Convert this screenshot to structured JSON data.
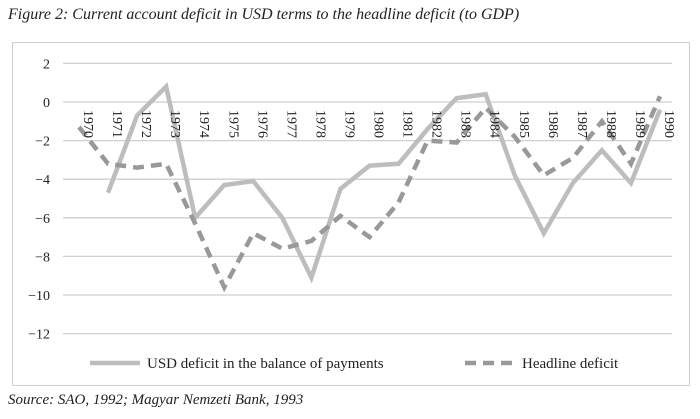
{
  "title": "Figure 2: Current account deficit in USD terms to the headline deficit (to GDP)",
  "source": "Source: SAO, 1992; Magyar Nemzeti Bank, 1993",
  "chart_data": {
    "type": "line",
    "categories": [
      "1970",
      "1971",
      "1972",
      "1973",
      "1974",
      "1975",
      "1976",
      "1977",
      "1978",
      "1979",
      "1980",
      "1981",
      "1982",
      "1983",
      "1984",
      "1985",
      "1986",
      "1987",
      "1988",
      "1989",
      "1990"
    ],
    "ylim": [
      -12,
      2
    ],
    "yticks": [
      2,
      0,
      -2,
      -4,
      -6,
      -8,
      -10,
      -12
    ],
    "ytick_labels": [
      "2",
      "0",
      "−2",
      "−4",
      "−6",
      "−8",
      "−10",
      "−12"
    ],
    "grid": true,
    "legend_placement": "bottom",
    "series": [
      {
        "name": "USD deficit in the balance of payments",
        "style": "solid",
        "color": "#bdbdbd",
        "values": [
          null,
          -4.7,
          -0.7,
          0.8,
          -6.0,
          -4.3,
          -4.1,
          -6.0,
          -9.1,
          -4.5,
          -3.3,
          -3.2,
          -1.4,
          0.2,
          0.4,
          -3.8,
          -6.8,
          -4.2,
          -2.5,
          -4.2,
          -0.4
        ]
      },
      {
        "name": "Headline deficit",
        "style": "dashed",
        "color": "#999999",
        "values": [
          -1.3,
          -3.2,
          -3.4,
          -3.2,
          -6.3,
          -9.6,
          -6.8,
          -7.6,
          -7.2,
          -5.9,
          -7.0,
          -5.2,
          -2.0,
          -2.1,
          -0.3,
          -1.8,
          -3.8,
          -2.9,
          -1.0,
          -3.2,
          0.3
        ]
      }
    ]
  }
}
